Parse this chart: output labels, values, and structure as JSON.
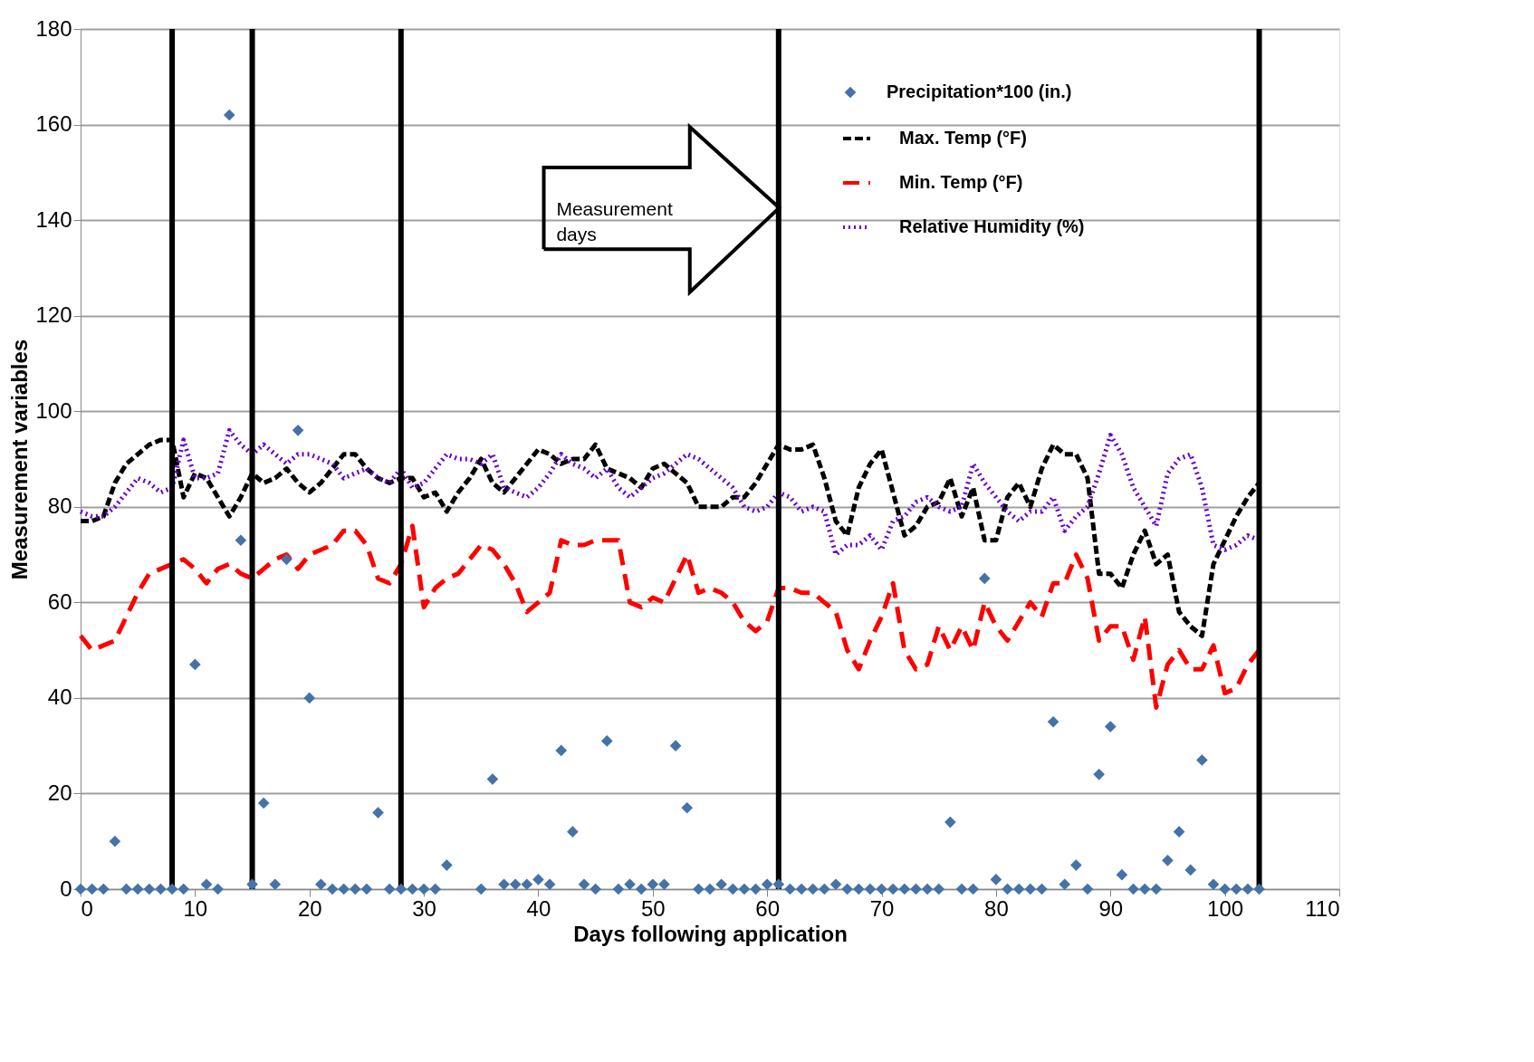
{
  "chart_data": {
    "type": "scatter",
    "xlabel": "Days following application",
    "ylabel": "Measurement variables",
    "xlim": [
      0,
      110
    ],
    "xticks": [
      0,
      10,
      20,
      30,
      40,
      50,
      60,
      70,
      80,
      90,
      100,
      110
    ],
    "ylim": [
      0,
      180
    ],
    "yticks": [
      0,
      20,
      40,
      60,
      80,
      100,
      120,
      140,
      160,
      180
    ],
    "grid": "y",
    "legend": "top right",
    "x": [
      0,
      1,
      2,
      3,
      4,
      5,
      6,
      7,
      8,
      9,
      10,
      11,
      12,
      13,
      14,
      15,
      16,
      17,
      18,
      19,
      20,
      21,
      22,
      23,
      24,
      25,
      26,
      27,
      28,
      29,
      30,
      31,
      32,
      33,
      34,
      35,
      36,
      37,
      38,
      39,
      40,
      41,
      42,
      43,
      44,
      45,
      46,
      47,
      48,
      49,
      50,
      51,
      52,
      53,
      54,
      55,
      56,
      57,
      58,
      59,
      60,
      61,
      62,
      63,
      64,
      65,
      66,
      67,
      68,
      69,
      70,
      71,
      72,
      73,
      74,
      75,
      76,
      77,
      78,
      79,
      80,
      81,
      82,
      83,
      84,
      85,
      86,
      87,
      88,
      89,
      90,
      91,
      92,
      93,
      94,
      95,
      96,
      97,
      98,
      99,
      100,
      101,
      102,
      103
    ],
    "series": [
      {
        "name": "Precipitation*100  (in.)",
        "marker": "diamond",
        "color": "#4572a7",
        "x": [
          0,
          1,
          2,
          3,
          4,
          5,
          6,
          7,
          8,
          9,
          10,
          11,
          12,
          13,
          14,
          15,
          16,
          17,
          18,
          19,
          20,
          21,
          22,
          23,
          24,
          25,
          26,
          27,
          28,
          29,
          30,
          31,
          32,
          35,
          36,
          37,
          38,
          39,
          40,
          41,
          42,
          43,
          44,
          45,
          46,
          47,
          48,
          49,
          50,
          51,
          52,
          53,
          54,
          55,
          56,
          57,
          58,
          59,
          60,
          61,
          62,
          63,
          64,
          65,
          66,
          67,
          68,
          69,
          70,
          71,
          72,
          73,
          74,
          75,
          76,
          77,
          78,
          79,
          80,
          81,
          82,
          83,
          84,
          85,
          86,
          87,
          88,
          89,
          90,
          91,
          92,
          93,
          94,
          95,
          96,
          97,
          98,
          99,
          100,
          101,
          102,
          103
        ],
        "values": [
          0,
          0,
          0,
          10,
          0,
          0,
          0,
          0,
          0,
          0,
          47,
          1,
          0,
          162,
          73,
          1,
          18,
          1,
          69,
          96,
          40,
          1,
          0,
          0,
          0,
          0,
          16,
          0,
          0,
          0,
          0,
          0,
          5,
          0,
          23,
          1,
          1,
          1,
          2,
          1,
          29,
          12,
          1,
          0,
          31,
          0,
          1,
          0,
          1,
          1,
          30,
          17,
          0,
          0,
          1,
          0,
          0,
          0,
          1,
          1,
          0,
          0,
          0,
          0,
          1,
          0,
          0,
          0,
          0,
          0,
          0,
          0,
          0,
          0,
          14,
          0,
          0,
          65,
          2,
          0,
          0,
          0,
          0,
          35,
          1,
          5,
          0,
          24,
          34,
          3,
          0,
          0,
          0,
          6,
          12,
          4,
          27,
          1,
          0,
          0,
          0,
          0
        ]
      },
      {
        "name": "Max. Temp (°F)",
        "type": "line",
        "line_style": "dashed",
        "color": "#000000",
        "values": [
          77,
          77,
          78,
          85,
          89,
          91,
          93,
          94,
          94,
          82,
          87,
          86,
          82,
          78,
          82,
          87,
          85,
          86,
          88,
          85,
          83,
          85,
          88,
          91,
          91,
          88,
          86,
          85,
          86,
          86,
          82,
          83,
          79,
          83,
          86,
          90,
          85,
          83,
          86,
          89,
          92,
          91,
          89,
          90,
          90,
          93,
          88,
          87,
          86,
          84,
          88,
          89,
          87,
          85,
          80,
          80,
          80,
          82,
          82,
          85,
          89,
          93,
          92,
          92,
          93,
          86,
          77,
          74,
          84,
          89,
          92,
          83,
          74,
          76,
          80,
          81,
          86,
          78,
          84,
          73,
          73,
          82,
          85,
          80,
          88,
          93,
          91,
          91,
          86,
          66,
          66,
          63,
          70,
          75,
          68,
          70,
          58,
          55,
          53,
          68,
          73,
          78,
          82,
          85
        ]
      },
      {
        "name": "Min. Temp (°F)",
        "type": "line",
        "line_style": "longdash",
        "color": "#ff0000",
        "values": [
          53,
          50,
          51,
          52,
          57,
          62,
          66,
          67,
          68,
          69,
          67,
          64,
          67,
          68,
          66,
          65,
          67,
          69,
          70,
          67,
          70,
          71,
          72,
          75,
          75,
          72,
          65,
          64,
          68,
          76,
          59,
          63,
          65,
          66,
          69,
          72,
          71,
          68,
          64,
          58,
          60,
          62,
          73,
          72,
          72,
          73,
          73,
          73,
          60,
          59,
          61,
          60,
          65,
          70,
          62,
          63,
          62,
          60,
          56,
          54,
          56,
          63,
          63,
          62,
          62,
          60,
          58,
          50,
          46,
          52,
          57,
          64,
          50,
          46,
          47,
          55,
          50,
          55,
          50,
          60,
          55,
          52,
          56,
          60,
          57,
          64,
          64,
          70,
          65,
          52,
          55,
          55,
          48,
          57,
          38,
          47,
          50,
          46,
          46,
          51,
          41,
          42,
          47,
          50
        ]
      },
      {
        "name": "Relative Humidity (%)",
        "type": "line",
        "line_style": "dotted",
        "color": "#6600cc",
        "values": [
          79,
          78,
          78,
          80,
          83,
          86,
          85,
          83,
          84,
          94,
          86,
          86,
          87,
          96,
          93,
          91,
          93,
          91,
          89,
          91,
          91,
          90,
          89,
          86,
          87,
          88,
          86,
          85,
          88,
          84,
          85,
          88,
          91,
          90,
          90,
          89,
          91,
          84,
          83,
          82,
          84,
          87,
          91,
          89,
          88,
          86,
          88,
          84,
          82,
          84,
          86,
          87,
          89,
          91,
          90,
          88,
          86,
          84,
          80,
          79,
          80,
          83,
          82,
          79,
          80,
          79,
          70,
          72,
          72,
          74,
          71,
          77,
          78,
          81,
          82,
          80,
          79,
          80,
          89,
          85,
          82,
          79,
          77,
          79,
          79,
          82,
          75,
          78,
          80,
          87,
          95,
          91,
          84,
          80,
          76,
          87,
          90,
          91,
          84,
          72,
          71,
          72,
          74,
          73
        ]
      }
    ],
    "ref_lines": [
      {
        "axis": "x",
        "value": 8,
        "color": "#000000"
      },
      {
        "axis": "x",
        "value": 15,
        "color": "#000000"
      },
      {
        "axis": "x",
        "value": 28,
        "color": "#000000"
      },
      {
        "axis": "x",
        "value": 61,
        "color": "#000000"
      },
      {
        "axis": "x",
        "value": 103,
        "color": "#000000"
      }
    ],
    "annotations": [
      "Measurement days"
    ]
  }
}
